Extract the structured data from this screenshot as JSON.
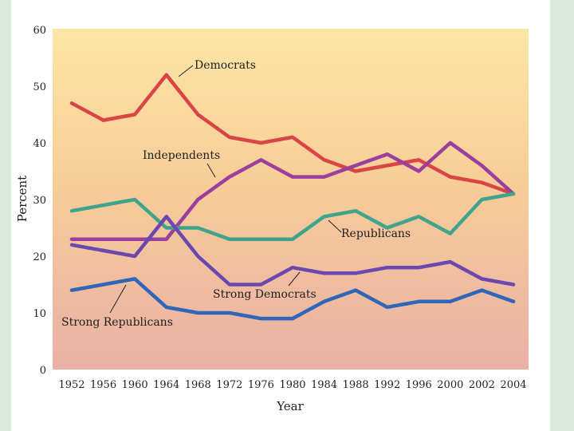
{
  "chart_data": {
    "type": "line",
    "title": "",
    "xlabel": "Year",
    "ylabel": "Percent",
    "ylim": [
      0,
      60
    ],
    "yticks": [
      0,
      10,
      20,
      30,
      40,
      50,
      60
    ],
    "categories": [
      "1952",
      "1956",
      "1960",
      "1964",
      "1968",
      "1972",
      "1976",
      "1980",
      "1984",
      "1988",
      "1992",
      "1996",
      "2000",
      "2002",
      "2004"
    ],
    "series": [
      {
        "name": "Democrats",
        "color": "#d94545",
        "values": [
          47,
          44,
          45,
          52,
          45,
          41,
          40,
          41,
          37,
          35,
          36,
          37,
          34,
          33,
          31
        ]
      },
      {
        "name": "Independents",
        "color": "#9a3f9e",
        "values": [
          23,
          23,
          23,
          23,
          30,
          34,
          37,
          34,
          34,
          36,
          38,
          35,
          40,
          36,
          31
        ]
      },
      {
        "name": "Republicans",
        "color": "#3ea58c",
        "values": [
          28,
          29,
          30,
          25,
          25,
          23,
          23,
          23,
          27,
          28,
          25,
          27,
          24,
          30,
          31
        ]
      },
      {
        "name": "Strong Democrats",
        "color": "#6a48b0",
        "values": [
          22,
          21,
          20,
          27,
          20,
          15,
          15,
          18,
          17,
          17,
          18,
          18,
          19,
          16,
          15
        ]
      },
      {
        "name": "Strong Republicans",
        "color": "#2f66b8",
        "values": [
          14,
          15,
          16,
          11,
          10,
          10,
          9,
          9,
          12,
          14,
          11,
          12,
          12,
          14,
          12
        ]
      }
    ],
    "annotations": [
      {
        "text": "Democrats",
        "series": "Democrats"
      },
      {
        "text": "Independents",
        "series": "Independents"
      },
      {
        "text": "Republicans",
        "series": "Republicans"
      },
      {
        "text": "Strong Democrats",
        "series": "Strong Democrats"
      },
      {
        "text": "Strong Republicans",
        "series": "Strong Republicans"
      }
    ]
  }
}
